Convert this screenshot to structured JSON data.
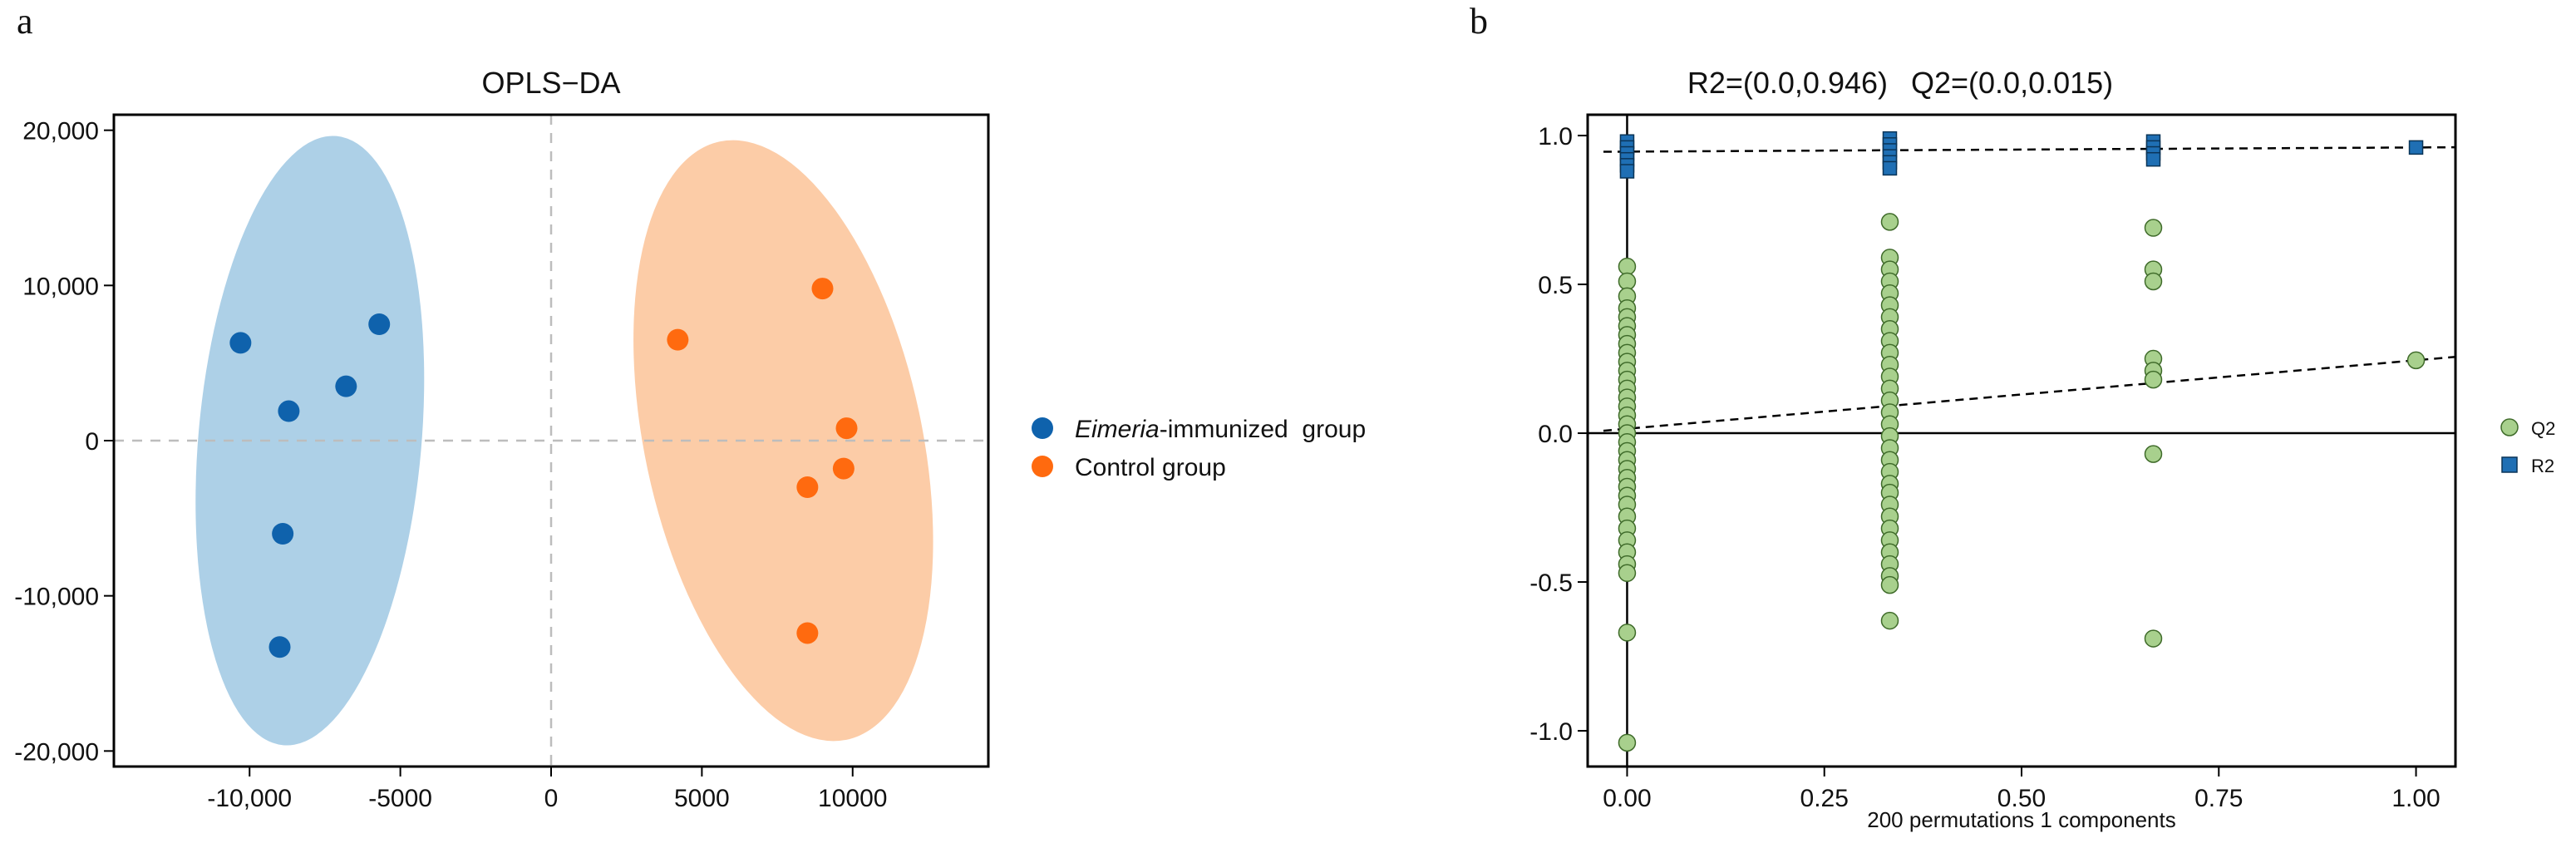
{
  "panels": {
    "a": {
      "letter": "a"
    },
    "b": {
      "letter": "b"
    }
  },
  "colors": {
    "immunized": "#0f62ac",
    "immunized_ellipse": "#a9cde6",
    "control": "#ff6a0f",
    "control_ellipse": "#fcc9a2",
    "q2_fill": "#a8d08d",
    "q2_edge": "#3f6b2a",
    "r2_fill": "#1f6fb4",
    "r2_edge": "#0b3558",
    "ref_line": "#bdbdbd"
  },
  "chart_data": [
    {
      "type": "scatter",
      "title": "OPLS−DA",
      "xlabel": "",
      "ylabel": "",
      "xlim": [
        -14500,
        14500
      ],
      "ylim": [
        -21000,
        21000
      ],
      "x_ticks": [
        -10000,
        -5000,
        0,
        5000,
        10000
      ],
      "x_tick_labels": [
        "-10,000",
        "-5000",
        "0",
        "5000",
        "10000"
      ],
      "y_ticks": [
        20000,
        10000,
        0,
        -10000,
        -20000
      ],
      "y_tick_labels": [
        "20,000",
        "10,000",
        "0",
        "-10,000",
        "-20,000"
      ],
      "reference_lines": {
        "x": 0,
        "y": 0
      },
      "legend_position": "right",
      "series": [
        {
          "name": "Eimeria-immunized group",
          "name_italic": "Eimeria",
          "name_rest": "-immunized  group",
          "points": [
            [
              -10300,
              6300
            ],
            [
              -5700,
              7500
            ],
            [
              -6800,
              3500
            ],
            [
              -8700,
              1900
            ],
            [
              -8900,
              -6000
            ],
            [
              -9000,
              -13300
            ]
          ],
          "ellipse": {
            "center": [
              -8000,
              0
            ],
            "semi_major": 19700,
            "semi_minor": 3700,
            "tilt_deg": 5
          }
        },
        {
          "name": "Control group",
          "points": [
            [
              4200,
              6500
            ],
            [
              9000,
              9800
            ],
            [
              9800,
              800
            ],
            [
              9700,
              -1800
            ],
            [
              8500,
              -3000
            ],
            [
              8500,
              -12400
            ]
          ],
          "ellipse": {
            "center": [
              7700,
              0
            ],
            "semi_major": 19700,
            "semi_minor": 4600,
            "tilt_deg": -12
          }
        }
      ]
    },
    {
      "type": "scatter",
      "title_r2": "R2=(0.0,0.946)",
      "title_q2": "Q2=(0.0,0.015)",
      "xlabel": "200 permutations 1 components",
      "ylabel": "",
      "xlim": [
        -0.05,
        1.05
      ],
      "ylim": [
        -1.12,
        1.07
      ],
      "x_ticks": [
        0,
        0.25,
        0.5,
        0.75,
        1.0
      ],
      "x_tick_labels": [
        "0.00",
        "0.25",
        "0.50",
        "0.75",
        "1.00"
      ],
      "y_ticks": [
        1.0,
        0.5,
        0.0,
        -0.5,
        -1.0
      ],
      "y_tick_labels": [
        "1.0",
        "0.5",
        "0.0",
        "-0.5",
        "-1.0"
      ],
      "reference_lines": {
        "x": 0,
        "y": 0
      },
      "regression_lines": [
        {
          "name": "R2",
          "intercept": 0.946,
          "end": [
            1.0,
            0.96
          ],
          "range": [
            -0.03,
            1.05
          ]
        },
        {
          "name": "Q2",
          "intercept": 0.015,
          "end": [
            1.0,
            0.245
          ],
          "range": [
            -0.03,
            1.05
          ]
        }
      ],
      "legend_position": "right",
      "series": [
        {
          "name": "Q2",
          "marker": "circle",
          "points": [
            [
              0,
              0.56
            ],
            [
              0,
              0.51
            ],
            [
              0,
              0.46
            ],
            [
              0,
              0.42
            ],
            [
              0,
              0.39
            ],
            [
              0,
              0.36
            ],
            [
              0,
              0.33
            ],
            [
              0,
              0.3
            ],
            [
              0,
              0.27
            ],
            [
              0,
              0.24
            ],
            [
              0,
              0.21
            ],
            [
              0,
              0.18
            ],
            [
              0,
              0.15
            ],
            [
              0,
              0.12
            ],
            [
              0,
              0.09
            ],
            [
              0,
              0.06
            ],
            [
              0,
              0.03
            ],
            [
              0,
              0.0
            ],
            [
              0,
              -0.03
            ],
            [
              0,
              -0.06
            ],
            [
              0,
              -0.09
            ],
            [
              0,
              -0.12
            ],
            [
              0,
              -0.15
            ],
            [
              0,
              -0.18
            ],
            [
              0,
              -0.21
            ],
            [
              0,
              -0.24
            ],
            [
              0,
              -0.28
            ],
            [
              0,
              -0.32
            ],
            [
              0,
              -0.36
            ],
            [
              0,
              -0.4
            ],
            [
              0,
              -0.44
            ],
            [
              0,
              -0.47
            ],
            [
              0,
              -0.67
            ],
            [
              0,
              -1.04
            ],
            [
              0.333,
              0.71
            ],
            [
              0.333,
              0.59
            ],
            [
              0.333,
              0.55
            ],
            [
              0.333,
              0.51
            ],
            [
              0.333,
              0.47
            ],
            [
              0.333,
              0.43
            ],
            [
              0.333,
              0.39
            ],
            [
              0.333,
              0.35
            ],
            [
              0.333,
              0.31
            ],
            [
              0.333,
              0.27
            ],
            [
              0.333,
              0.23
            ],
            [
              0.333,
              0.19
            ],
            [
              0.333,
              0.15
            ],
            [
              0.333,
              0.11
            ],
            [
              0.333,
              0.07
            ],
            [
              0.333,
              0.03
            ],
            [
              0.333,
              -0.01
            ],
            [
              0.333,
              -0.05
            ],
            [
              0.333,
              -0.09
            ],
            [
              0.333,
              -0.13
            ],
            [
              0.333,
              -0.17
            ],
            [
              0.333,
              -0.2
            ],
            [
              0.333,
              -0.24
            ],
            [
              0.333,
              -0.28
            ],
            [
              0.333,
              -0.32
            ],
            [
              0.333,
              -0.36
            ],
            [
              0.333,
              -0.4
            ],
            [
              0.333,
              -0.44
            ],
            [
              0.333,
              -0.48
            ],
            [
              0.333,
              -0.51
            ],
            [
              0.333,
              -0.63
            ],
            [
              0.667,
              0.69
            ],
            [
              0.667,
              0.55
            ],
            [
              0.667,
              0.51
            ],
            [
              0.667,
              0.25
            ],
            [
              0.667,
              0.21
            ],
            [
              0.667,
              0.18
            ],
            [
              0.667,
              -0.07
            ],
            [
              0.667,
              -0.69
            ],
            [
              1.0,
              0.245
            ]
          ]
        },
        {
          "name": "R2",
          "marker": "square",
          "points": [
            [
              0,
              0.98
            ],
            [
              0,
              0.96
            ],
            [
              0,
              0.94
            ],
            [
              0,
              0.92
            ],
            [
              0,
              0.9
            ],
            [
              0,
              0.88
            ],
            [
              0.333,
              0.99
            ],
            [
              0.333,
              0.97
            ],
            [
              0.333,
              0.95
            ],
            [
              0.333,
              0.93
            ],
            [
              0.333,
              0.91
            ],
            [
              0.333,
              0.89
            ],
            [
              0.667,
              0.98
            ],
            [
              0.667,
              0.96
            ],
            [
              0.667,
              0.94
            ],
            [
              0.667,
              0.92
            ],
            [
              1.0,
              0.96
            ]
          ]
        }
      ]
    }
  ]
}
